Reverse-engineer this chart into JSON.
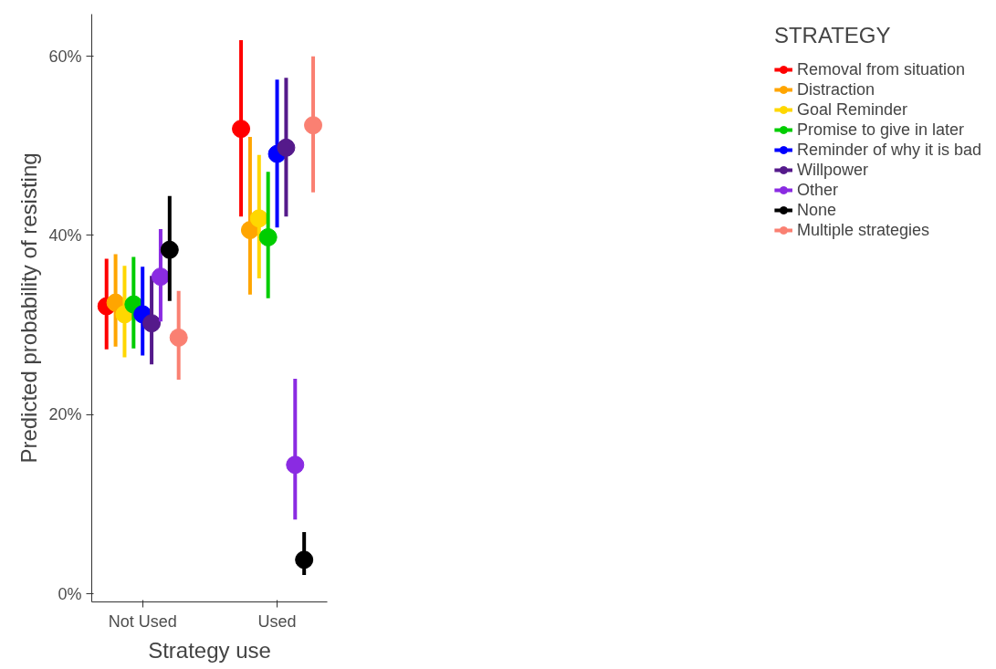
{
  "chart_data": {
    "type": "scatter",
    "xlabel": "Strategy use",
    "ylabel": "Predicted probability of resisting",
    "legend_title": "STRATEGY",
    "legend": "right",
    "grid": false,
    "marker": "circle",
    "categories": [
      "Not Used",
      "Used"
    ],
    "ylim": [
      -0.9,
      64.7
    ],
    "yticks": [
      {
        "value": 0,
        "label": "0%"
      },
      {
        "value": 20,
        "label": "20%"
      },
      {
        "value": 40,
        "label": "40%"
      },
      {
        "value": 60,
        "label": "60%"
      }
    ],
    "series": [
      {
        "name": "Removal from situation",
        "color": "#ff0000",
        "values": [
          32.1,
          51.9
        ],
        "errors": [
          [
            27.3,
            37.4
          ],
          [
            42.1,
            61.8
          ]
        ]
      },
      {
        "name": "Distraction",
        "color": "#ffa500",
        "values": [
          32.5,
          40.6
        ],
        "errors": [
          [
            27.6,
            37.9
          ],
          [
            33.4,
            51.0
          ]
        ]
      },
      {
        "name": "Goal Reminder",
        "color": "#ffd700",
        "values": [
          31.2,
          41.9
        ],
        "errors": [
          [
            26.4,
            36.6
          ],
          [
            35.2,
            49.0
          ]
        ]
      },
      {
        "name": "Promise to give in later",
        "color": "#00cd00",
        "values": [
          32.3,
          39.8
        ],
        "errors": [
          [
            27.4,
            37.6
          ],
          [
            33.0,
            47.1
          ]
        ]
      },
      {
        "name": "Reminder of why it is bad",
        "color": "#0000ff",
        "values": [
          31.2,
          49.1
        ],
        "errors": [
          [
            26.6,
            36.5
          ],
          [
            40.9,
            57.4
          ]
        ]
      },
      {
        "name": "Willpower",
        "color": "#551a8b",
        "values": [
          30.2,
          49.8
        ],
        "errors": [
          [
            25.6,
            35.5
          ],
          [
            42.1,
            57.6
          ]
        ]
      },
      {
        "name": "Other",
        "color": "#8a2be2",
        "values": [
          35.4,
          14.4
        ],
        "errors": [
          [
            30.4,
            40.7
          ],
          [
            8.3,
            24.0
          ]
        ]
      },
      {
        "name": "None",
        "color": "#000000",
        "values": [
          38.4,
          3.8
        ],
        "errors": [
          [
            32.7,
            44.4
          ],
          [
            2.1,
            6.9
          ]
        ]
      },
      {
        "name": "Multiple strategies",
        "color": "#fa8072",
        "values": [
          28.6,
          52.3
        ],
        "errors": [
          [
            23.9,
            33.8
          ],
          [
            44.8,
            60.0
          ]
        ]
      }
    ]
  }
}
